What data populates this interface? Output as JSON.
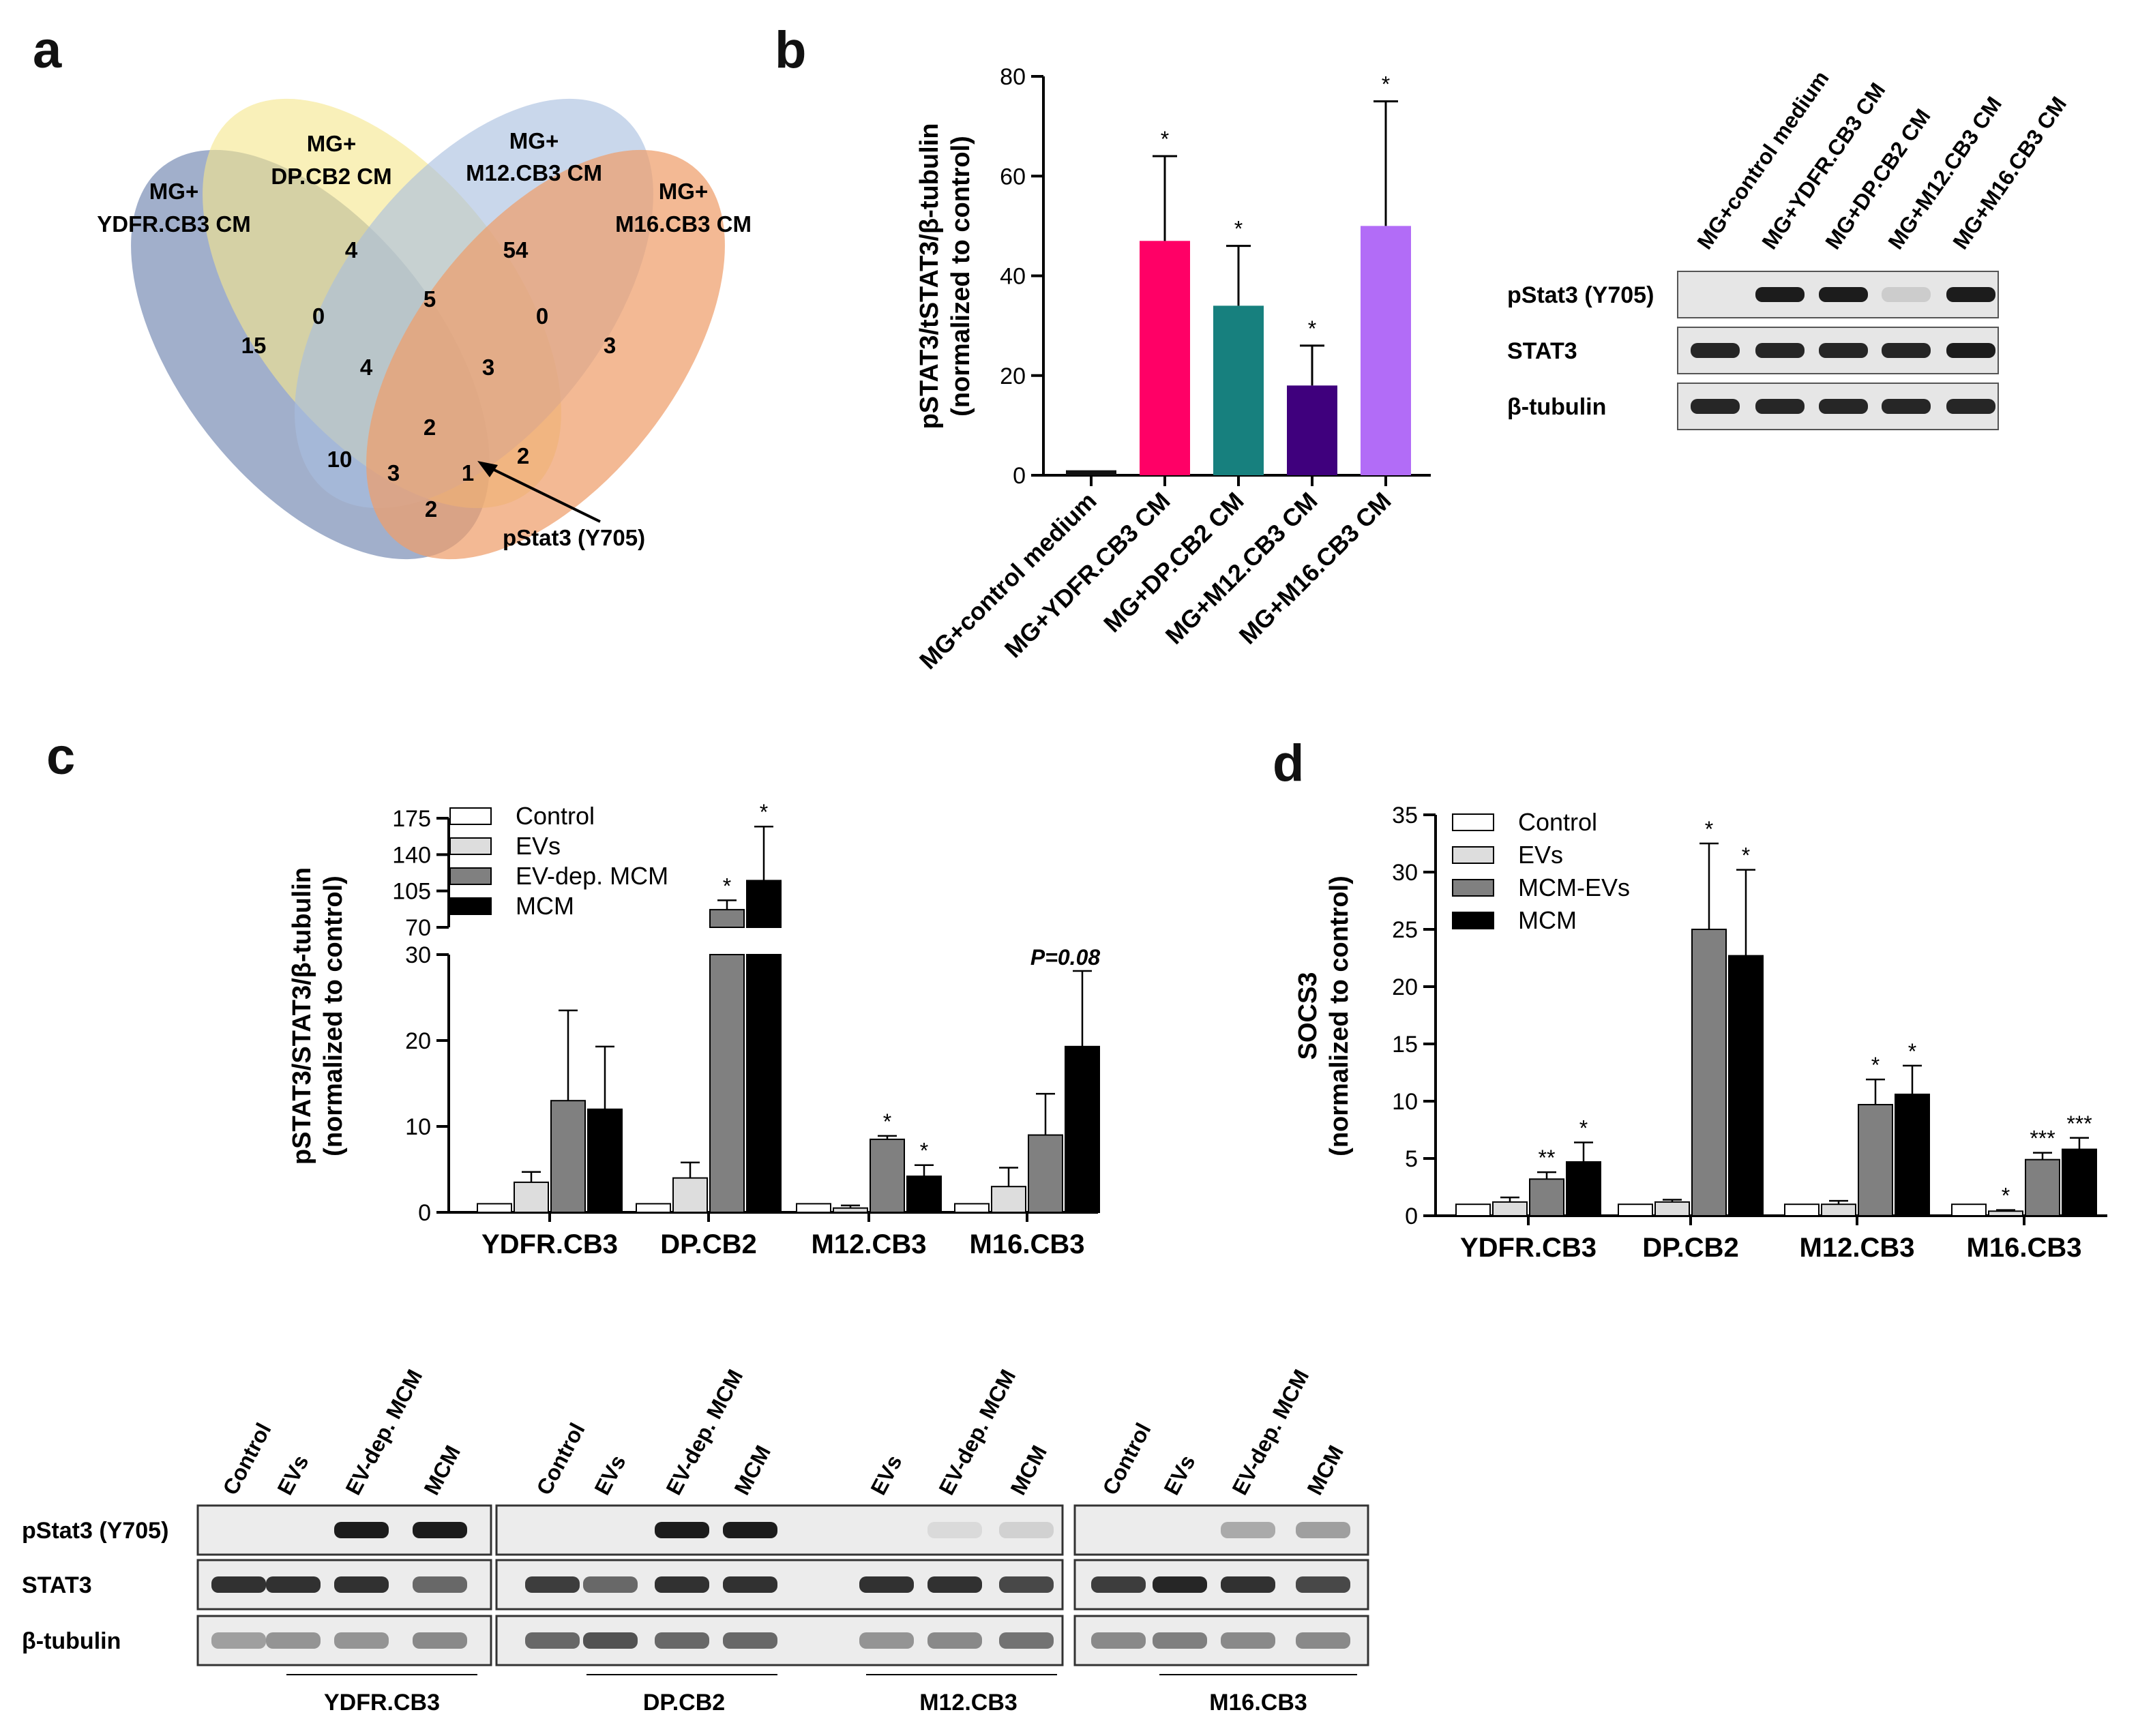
{
  "panels": {
    "a": "a",
    "b": "b",
    "c": "c",
    "d": "d"
  },
  "venn": {
    "sets": [
      {
        "l1": "MG+",
        "l2": "YDFR.CB3 CM",
        "color": "#7d91b8"
      },
      {
        "l1": "MG+",
        "l2": "DP.CB2 CM",
        "color": "#f6e78f"
      },
      {
        "l1": "MG+",
        "l2": "M12.CB3 CM",
        "color": "#a9bfe0"
      },
      {
        "l1": "MG+",
        "l2": "M16.CB3 CM",
        "color": "#ef9f6c"
      }
    ],
    "counts": [
      "15",
      "4",
      "54",
      "3",
      "0",
      "5",
      "0",
      "4",
      "3",
      "2",
      "10",
      "3",
      "1",
      "2",
      "2"
    ],
    "annotation": "pStat3 (Y705)"
  },
  "chart_data": [
    {
      "id": "b",
      "type": "bar",
      "title": "",
      "ylabel": "pSTAT3/tSTAT3/β-tubulin (normalized to control)",
      "ylabel_lines": [
        "pSTAT3/tSTAT3/β-tubulin",
        "(normalized to control)"
      ],
      "ylim": [
        0,
        80
      ],
      "yticks": [
        "0",
        "20",
        "40",
        "60",
        "80"
      ],
      "categories": [
        "MG+control medium",
        "MG+YDFR.CB3 CM",
        "MG+DP.CB2 CM",
        "MG+M12.CB3 CM",
        "MG+M16.CB3 CM"
      ],
      "values": [
        1,
        47,
        34,
        18,
        50
      ],
      "errors": [
        0,
        17,
        12,
        8,
        25
      ],
      "significance": [
        "",
        "*",
        "*",
        "*",
        "*"
      ],
      "colors": [
        "#111111",
        "#ff0066",
        "#17807e",
        "#3f007d",
        "#b26cf7"
      ]
    },
    {
      "id": "c",
      "type": "bar",
      "ylabel": "pSTAT3/STAT3/β-tubulin (normalized to control)",
      "ylabel_lines": [
        "pSTAT3/STAT3/β-tubulin",
        "(normalized to control)"
      ],
      "ylim_lower": [
        0,
        30
      ],
      "ylim_upper": [
        70,
        175
      ],
      "yticks_lower": [
        "0",
        "10",
        "20",
        "30"
      ],
      "yticks_upper": [
        "70",
        "105",
        "140",
        "175"
      ],
      "categories": [
        "YDFR.CB3",
        "DP.CB2",
        "M12.CB3",
        "M16.CB3"
      ],
      "series": [
        {
          "name": "Control",
          "values": [
            1,
            1,
            1,
            1
          ],
          "errors": [
            0,
            0,
            0,
            0
          ],
          "sig": [
            "",
            "",
            "",
            ""
          ],
          "fill": "#ffffff"
        },
        {
          "name": "EVs",
          "values": [
            3.5,
            4,
            0.5,
            3
          ],
          "errors": [
            1.2,
            1.8,
            0.3,
            2.2
          ],
          "sig": [
            "",
            "",
            "",
            ""
          ],
          "fill": "#dddddd"
        },
        {
          "name": "EV-dep. MCM",
          "values": [
            13,
            87,
            8.5,
            9
          ],
          "errors": [
            10.5,
            9,
            0.4,
            4.8
          ],
          "sig": [
            "",
            "*",
            "*",
            ""
          ],
          "fill": "#808080"
        },
        {
          "name": "MCM",
          "values": [
            12,
            115,
            4.2,
            19.3
          ],
          "errors": [
            7.3,
            52,
            1.3,
            8.8
          ],
          "sig": [
            "",
            "*",
            "*",
            ""
          ],
          "fill": "#000000"
        }
      ],
      "annotation": "P=0.08"
    },
    {
      "id": "d",
      "type": "bar",
      "ylabel": "SOCS3 (normalized to control)",
      "ylabel_lines": [
        "SOCS3",
        "(normalized to control)"
      ],
      "ylim": [
        0,
        35
      ],
      "yticks": [
        "0",
        "5",
        "10",
        "15",
        "20",
        "25",
        "30",
        "35"
      ],
      "categories": [
        "YDFR.CB3",
        "DP.CB2",
        "M12.CB3",
        "M16.CB3"
      ],
      "series": [
        {
          "name": "Control",
          "values": [
            1,
            1,
            1,
            1
          ],
          "errors": [
            0,
            0,
            0,
            0
          ],
          "sig": [
            "",
            "",
            "",
            ""
          ],
          "fill": "#ffffff"
        },
        {
          "name": "EVs",
          "values": [
            1.2,
            1.2,
            1,
            0.4
          ],
          "errors": [
            0.4,
            0.2,
            0.3,
            0.1
          ],
          "sig": [
            "",
            "",
            "",
            "*"
          ],
          "fill": "#dddddd"
        },
        {
          "name": "MCM-EVs",
          "values": [
            3.2,
            25,
            9.7,
            4.9
          ],
          "errors": [
            0.6,
            7.5,
            2.2,
            0.6
          ],
          "sig": [
            "**",
            "*",
            "*",
            "***"
          ],
          "fill": "#808080"
        },
        {
          "name": "MCM",
          "values": [
            4.7,
            22.7,
            10.6,
            5.8
          ],
          "errors": [
            1.7,
            7.5,
            2.5,
            1
          ],
          "sig": [
            "*",
            "*",
            "*",
            "***"
          ],
          "fill": "#000000"
        }
      ]
    }
  ],
  "blot_b": {
    "lanes": [
      "MG+control medium",
      "MG+YDFR.CB3 CM",
      "MG+DP.CB2 CM",
      "MG+M12.CB3 CM",
      "MG+M16.CB3 CM"
    ],
    "rows": [
      {
        "label": "pStat3 (Y705)",
        "intensity": [
          0.0,
          0.95,
          0.95,
          0.12,
          0.95
        ]
      },
      {
        "label": "STAT3",
        "intensity": [
          0.9,
          0.9,
          0.9,
          0.9,
          0.95
        ]
      },
      {
        "label": "β-tubulin",
        "intensity": [
          0.9,
          0.9,
          0.9,
          0.9,
          0.9
        ]
      }
    ]
  },
  "blot_c": {
    "row_labels": [
      "pStat3 (Y705)",
      "STAT3",
      "β-tubulin"
    ],
    "groups": [
      {
        "name": "YDFR.CB3",
        "lanes": [
          "Control",
          "EVs",
          "EV-dep. MCM",
          "MCM"
        ],
        "pstat": [
          0,
          0,
          0.95,
          0.95
        ],
        "stat": [
          0.85,
          0.85,
          0.85,
          0.6
        ],
        "tub": [
          0.35,
          0.4,
          0.4,
          0.45
        ]
      },
      {
        "name": "DP.CB2",
        "lanes": [
          "Control",
          "EVs",
          "EV-dep. MCM",
          "MCM"
        ],
        "pstat": [
          0,
          0,
          0.95,
          0.95
        ],
        "stat": [
          0.8,
          0.6,
          0.85,
          0.85
        ],
        "tub": [
          0.6,
          0.7,
          0.6,
          0.6
        ]
      },
      {
        "name": "M12.CB3",
        "lanes": [
          "EVs",
          "EV-dep. MCM",
          "MCM"
        ],
        "pstat": [
          0,
          0.08,
          0.12
        ],
        "stat": [
          0.85,
          0.85,
          0.75
        ],
        "tub": [
          0.4,
          0.45,
          0.55
        ]
      },
      {
        "name": "M16.CB3",
        "lanes": [
          "Control",
          "EVs",
          "EV-dep. MCM",
          "MCM"
        ],
        "pstat": [
          0,
          0,
          0.3,
          0.35
        ],
        "stat": [
          0.8,
          0.9,
          0.85,
          0.75
        ],
        "tub": [
          0.45,
          0.5,
          0.45,
          0.45
        ]
      }
    ]
  }
}
